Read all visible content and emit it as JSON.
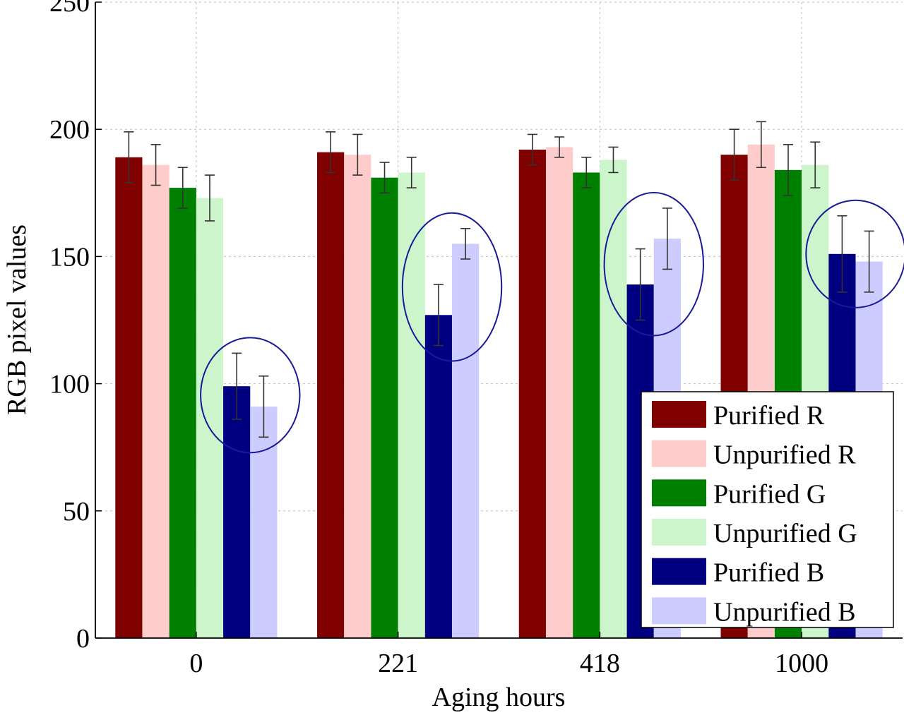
{
  "chart_data": {
    "type": "bar",
    "title": "",
    "xlabel": "Aging hours",
    "ylabel": "RGB pixel values",
    "categories": [
      "0",
      "221",
      "418",
      "1000"
    ],
    "ylim": [
      0,
      250
    ],
    "yticks": [
      0,
      50,
      100,
      150,
      200,
      250
    ],
    "grid": true,
    "legend_position": "bottom-right",
    "series": [
      {
        "name": "Purified R",
        "color": "#800000",
        "values": [
          189,
          191,
          192,
          190
        ],
        "errors": [
          10,
          8,
          6,
          10
        ]
      },
      {
        "name": "Unpurified R",
        "color": "#FFCCCC",
        "values": [
          186,
          190,
          193,
          194
        ],
        "errors": [
          8,
          8,
          4,
          9
        ]
      },
      {
        "name": "Purified G",
        "color": "#008000",
        "values": [
          177,
          181,
          183,
          184
        ],
        "errors": [
          8,
          6,
          6,
          10
        ]
      },
      {
        "name": "Unpurified G",
        "color": "#CCF5CC",
        "values": [
          173,
          183,
          188,
          186
        ],
        "errors": [
          9,
          6,
          5,
          9
        ]
      },
      {
        "name": "Purified B",
        "color": "#000080",
        "values": [
          99,
          127,
          139,
          151
        ],
        "errors": [
          13,
          12,
          14,
          15
        ]
      },
      {
        "name": "Unpurified B",
        "color": "#CCCCFF",
        "values": [
          91,
          155,
          157,
          148
        ],
        "errors": [
          12,
          6,
          12,
          12
        ]
      }
    ],
    "annotations": [
      {
        "type": "ellipse",
        "category": "0",
        "series": [
          "Purified B",
          "Unpurified B"
        ],
        "color": "#1a1a99"
      },
      {
        "type": "ellipse",
        "category": "221",
        "series": [
          "Purified B",
          "Unpurified B"
        ],
        "color": "#1a1a99"
      },
      {
        "type": "ellipse",
        "category": "418",
        "series": [
          "Purified B",
          "Unpurified B"
        ],
        "color": "#1a1a99"
      },
      {
        "type": "ellipse",
        "category": "1000",
        "series": [
          "Purified B",
          "Unpurified B"
        ],
        "color": "#1a1a99"
      }
    ]
  }
}
